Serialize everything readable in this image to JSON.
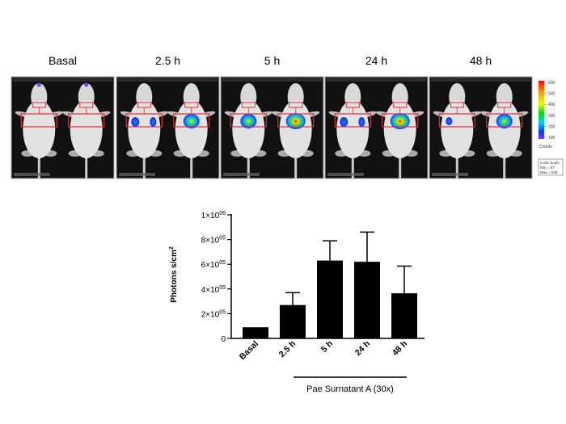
{
  "panels": [
    {
      "label": "Basal"
    },
    {
      "label": "2.5 h"
    },
    {
      "label": "5 h"
    },
    {
      "label": "24 h"
    },
    {
      "label": "48 h"
    }
  ],
  "color_scale": {
    "ticks": [
      "600",
      "500",
      "400",
      "300",
      "200",
      "100"
    ],
    "units": "Counts",
    "box_title": "Color Scale",
    "min_text": "Min = 87",
    "max_text": "Max = 636"
  },
  "chart_data": {
    "type": "bar",
    "categories": [
      "Basal",
      "2.5 h",
      "5 h",
      "24 h",
      "48 h"
    ],
    "values": [
      90000,
      270000,
      630000,
      620000,
      365000
    ],
    "error_upper": [
      90000,
      370000,
      790000,
      860000,
      585000
    ],
    "ylabel": "Photons s/cm",
    "ylabel_sup": "2",
    "ylim": [
      0,
      1000000
    ],
    "yticks": [
      0,
      200000,
      400000,
      600000,
      800000,
      1000000
    ],
    "ytick_labels": [
      {
        "base": "0",
        "exp": ""
      },
      {
        "base": "2×10",
        "exp": "05"
      },
      {
        "base": "4×10",
        "exp": "05"
      },
      {
        "base": "6×10",
        "exp": "05"
      },
      {
        "base": "8×10",
        "exp": "05"
      },
      {
        "base": "1×10",
        "exp": "06"
      }
    ],
    "bar_color": "#000000",
    "group_label": "Pae  Surnatant A (30x)",
    "grid": false,
    "legend": "none"
  }
}
